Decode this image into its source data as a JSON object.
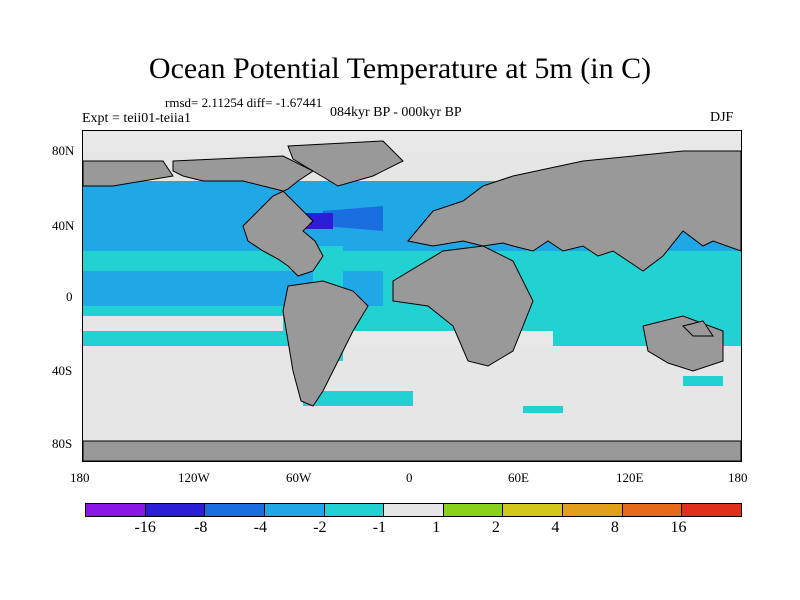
{
  "title": "Ocean Potential Temperature at 5m (in C)",
  "stats": "rmsd= 2.11254 diff= -1.67441",
  "expt": "Expt = teii01-teiia1",
  "period": "084kyr BP - 000kyr BP",
  "season": "DJF",
  "y_ticks": [
    "80N",
    "40N",
    "0",
    "40S",
    "80S"
  ],
  "x_ticks": [
    "180",
    "120W",
    "60W",
    "0",
    "60E",
    "120E",
    "180"
  ],
  "legend": {
    "colors": [
      "#8b17e6",
      "#2a1fd6",
      "#1a6ee0",
      "#20a8e6",
      "#22d2d2",
      "#e6e6e6",
      "#8ad21a",
      "#d2c81a",
      "#e0a01a",
      "#e66a1a",
      "#e0301a"
    ],
    "labels": [
      "-16",
      "-8",
      "-4",
      "-2",
      "-1",
      "1",
      "2",
      "4",
      "8",
      "16"
    ]
  },
  "map_colors": {
    "land": "#999999",
    "neutral": "#e6e6e6",
    "cool_1": "#22d2d2",
    "cool_2": "#20a8e6",
    "cool_3": "#1a6ee0",
    "cool_4": "#2a1fd6",
    "warm_1": "#8ad21a",
    "warm_2": "#d2c81a"
  }
}
